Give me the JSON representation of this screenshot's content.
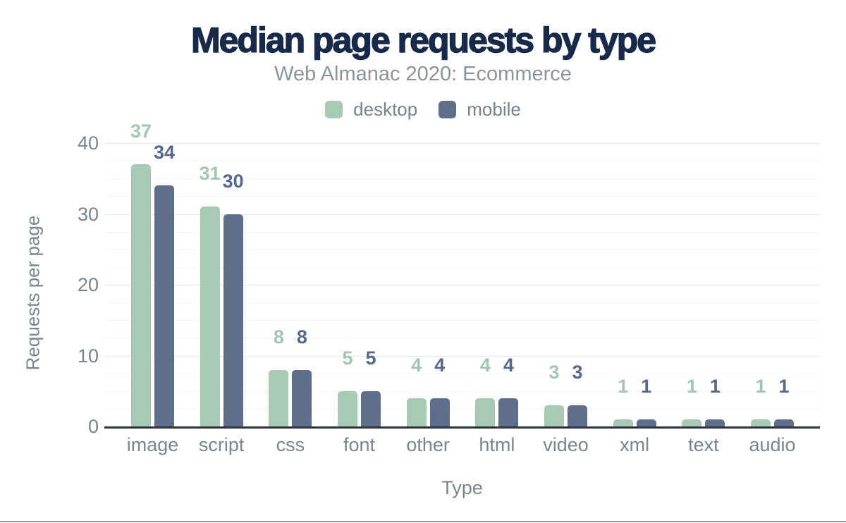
{
  "chart_data": {
    "type": "bar",
    "title": "Median page requests by type",
    "subtitle": "Web Almanac 2020: Ecommerce",
    "categories": [
      "image",
      "script",
      "css",
      "font",
      "other",
      "html",
      "video",
      "xml",
      "text",
      "audio"
    ],
    "series": [
      {
        "name": "desktop",
        "color": "#a7c9b5",
        "label_color": "#a2c6b1",
        "values": [
          37,
          31,
          8,
          5,
          4,
          4,
          3,
          1,
          1,
          1
        ]
      },
      {
        "name": "mobile",
        "color": "#5e6e8b",
        "label_color": "#56688c",
        "values": [
          34,
          30,
          8,
          5,
          4,
          4,
          3,
          1,
          1,
          1
        ]
      }
    ],
    "xlabel": "Type",
    "ylabel": "Requests per page",
    "yticks": [
      0,
      10,
      20,
      30,
      40
    ],
    "ylim": [
      0,
      40
    ],
    "grid": "horizontal",
    "legend_position": "top"
  }
}
